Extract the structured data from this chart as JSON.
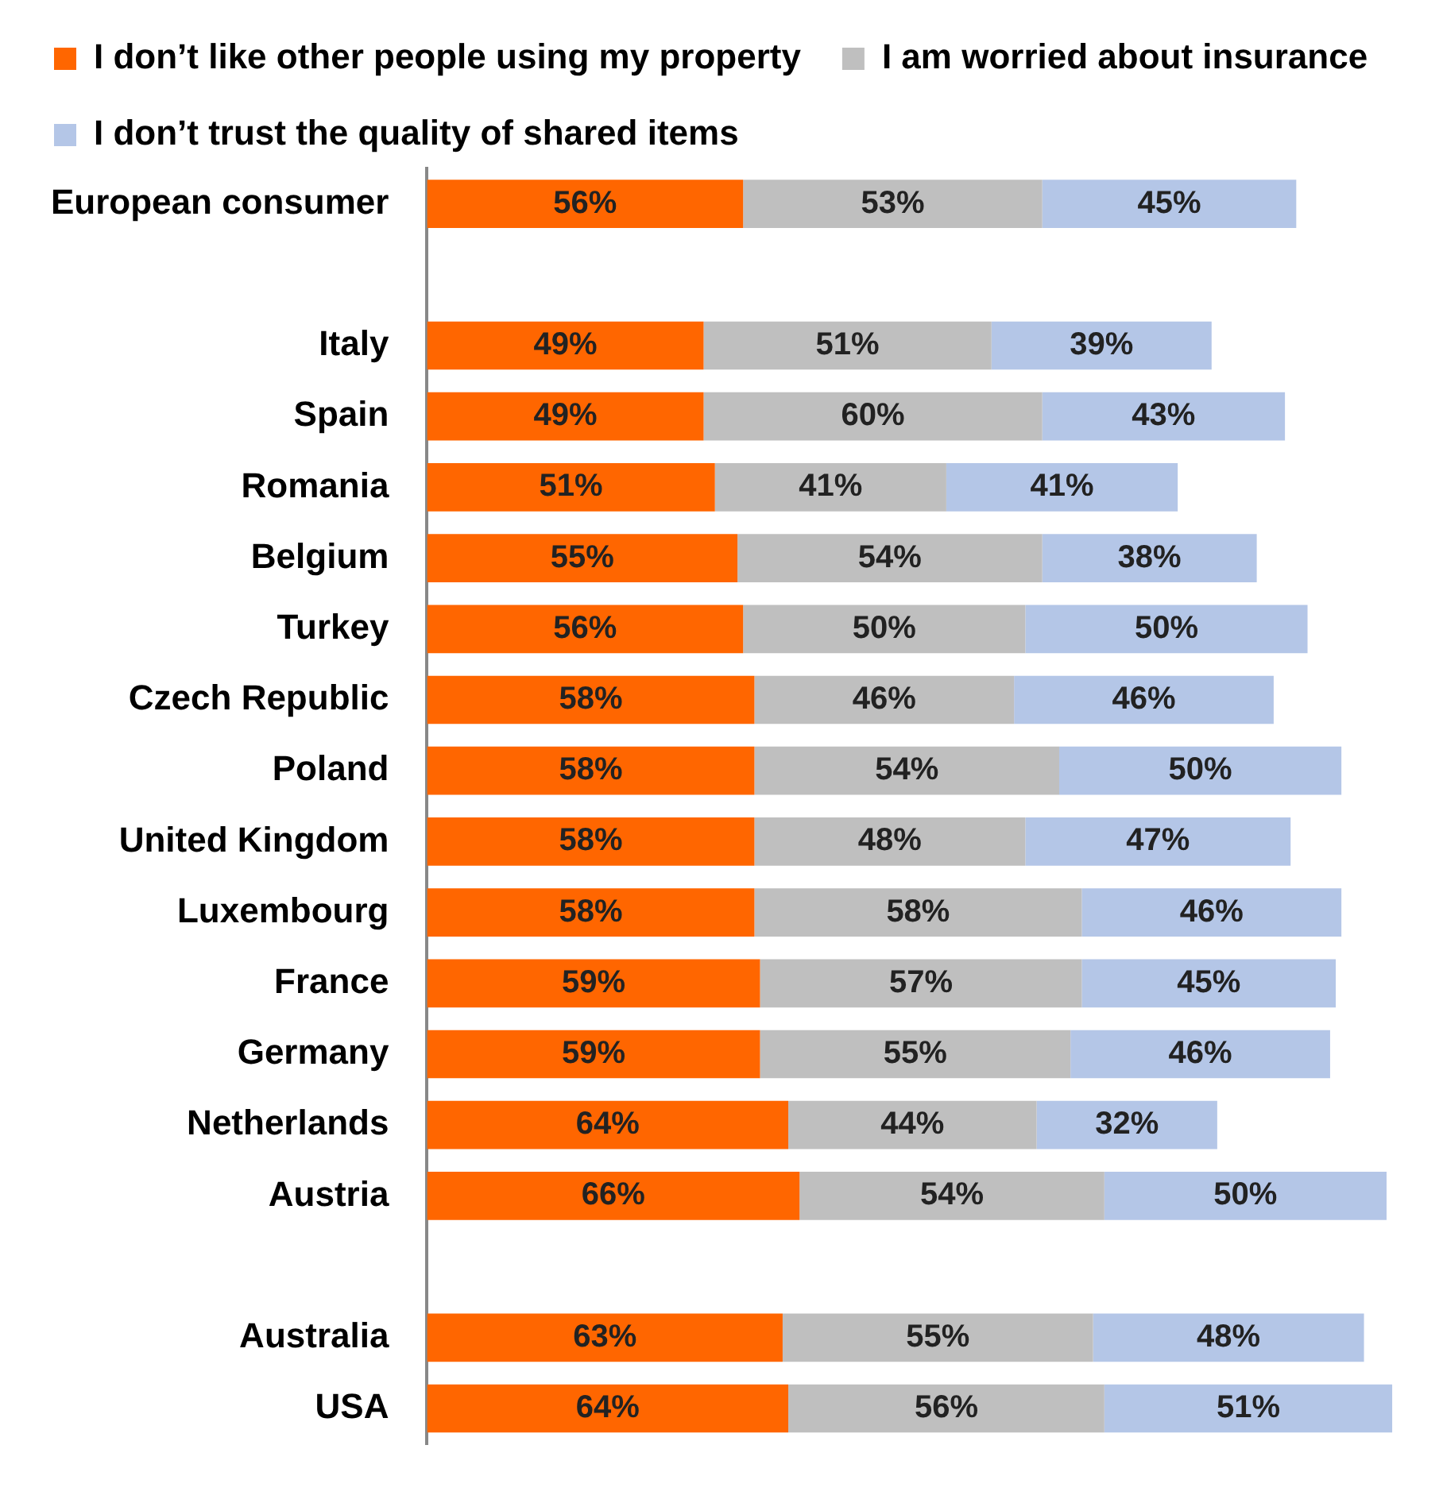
{
  "chart_data": {
    "type": "bar",
    "orientation": "horizontal",
    "stacked": true,
    "grid": false,
    "legend": "top",
    "tick_labels": "y",
    "categories": [
      "European consumer",
      null,
      "Italy",
      "Spain",
      "Romania",
      "Belgium",
      "Turkey",
      "Czech Republic",
      "Poland",
      "United Kingdom",
      "Luxembourg",
      "France",
      "Germany",
      "Netherlands",
      "Austria",
      null,
      "Australia",
      "USA"
    ],
    "series": [
      {
        "name": "I don’t like other people using my property",
        "color": "#ff6600",
        "values": [
          56,
          null,
          49,
          49,
          51,
          55,
          56,
          58,
          58,
          58,
          58,
          59,
          59,
          64,
          66,
          null,
          63,
          64
        ],
        "value_labels": [
          "56%",
          null,
          "49%",
          "49%",
          "51%",
          "55%",
          "56%",
          "58%",
          "58%",
          "58%",
          "58%",
          "59%",
          "59%",
          "64%",
          "66%",
          null,
          "63%",
          "64%"
        ]
      },
      {
        "name": "I am worried about insurance",
        "color": "#bfbfbf",
        "values": [
          53,
          null,
          51,
          60,
          41,
          54,
          50,
          46,
          54,
          48,
          58,
          57,
          55,
          44,
          54,
          null,
          55,
          56
        ],
        "value_labels": [
          "53%",
          null,
          "51%",
          "60%",
          "41%",
          "54%",
          "50%",
          "46%",
          "54%",
          "48%",
          "58%",
          "57%",
          "55%",
          "44%",
          "54%",
          null,
          "55%",
          "56%"
        ]
      },
      {
        "name": "I don’t trust the quality of shared items",
        "color": "#b4c6e7",
        "values": [
          45,
          null,
          39,
          43,
          41,
          38,
          50,
          46,
          50,
          47,
          46,
          45,
          46,
          32,
          50,
          null,
          48,
          51
        ],
        "value_labels": [
          "45%",
          null,
          "39%",
          "43%",
          "41%",
          "38%",
          "50%",
          "46%",
          "50%",
          "47%",
          "46%",
          "45%",
          "46%",
          "32%",
          "50%",
          null,
          "48%",
          "51%"
        ]
      }
    ]
  }
}
